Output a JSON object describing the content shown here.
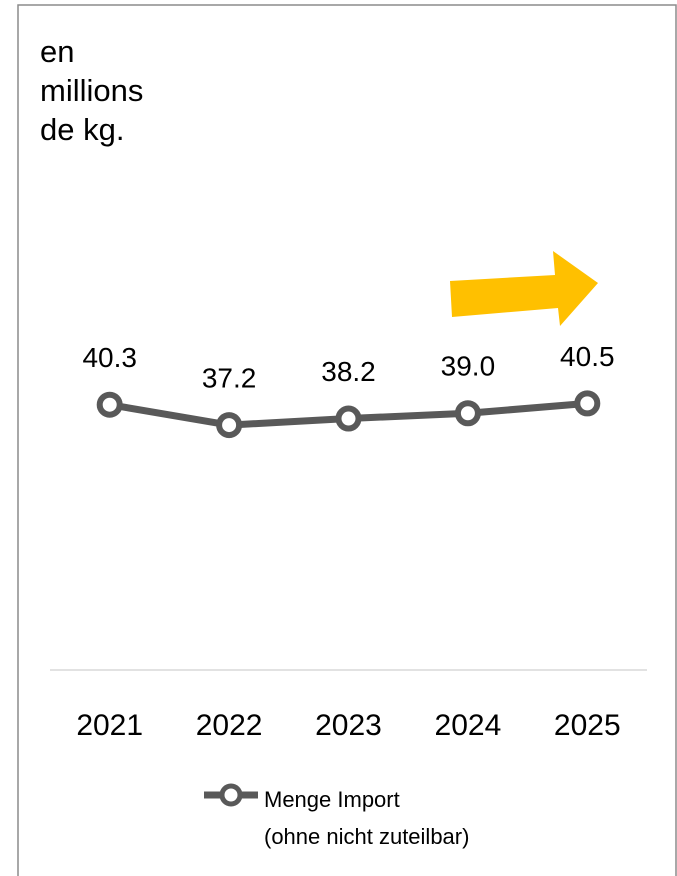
{
  "chart_data": {
    "type": "line",
    "ylabel": "en\nmillions\nde kg.",
    "categories": [
      "2021",
      "2022",
      "2023",
      "2024",
      "2025"
    ],
    "series": [
      {
        "name": "Menge Import\n(ohne nicht zuteilbar)",
        "color": "#595959",
        "values": [
          40.3,
          37.2,
          38.2,
          39.0,
          40.5
        ],
        "value_labels": [
          "40.3",
          "37.2",
          "38.2",
          "39.0",
          "40.5"
        ]
      }
    ],
    "ylim": [
      0,
      60
    ]
  }
}
